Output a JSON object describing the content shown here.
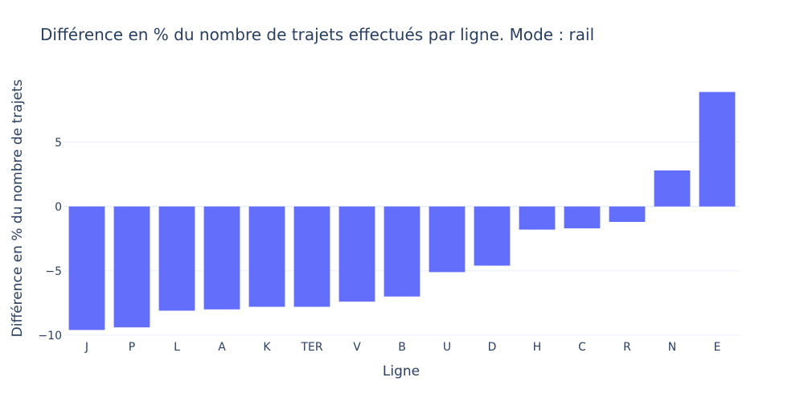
{
  "chart_data": {
    "type": "bar",
    "title": "Différence en % du nombre de trajets effectués par ligne. Mode : rail",
    "xlabel": "Ligne",
    "ylabel": "Différence en % du nombre de trajets",
    "categories": [
      "J",
      "P",
      "L",
      "A",
      "K",
      "TER",
      "V",
      "B",
      "U",
      "D",
      "H",
      "C",
      "R",
      "N",
      "E"
    ],
    "values": [
      -9.6,
      -9.4,
      -8.1,
      -8.0,
      -7.8,
      -7.8,
      -7.4,
      -7.0,
      -5.1,
      -4.6,
      -1.8,
      -1.7,
      -1.2,
      2.8,
      8.9
    ],
    "ylim": [
      -10.2,
      9.8
    ],
    "yticks": [
      -10,
      -5,
      0,
      5
    ],
    "ytick_labels": [
      "−10",
      "−5",
      "0",
      "5"
    ],
    "grid": true,
    "bar_color": "#636efa"
  }
}
